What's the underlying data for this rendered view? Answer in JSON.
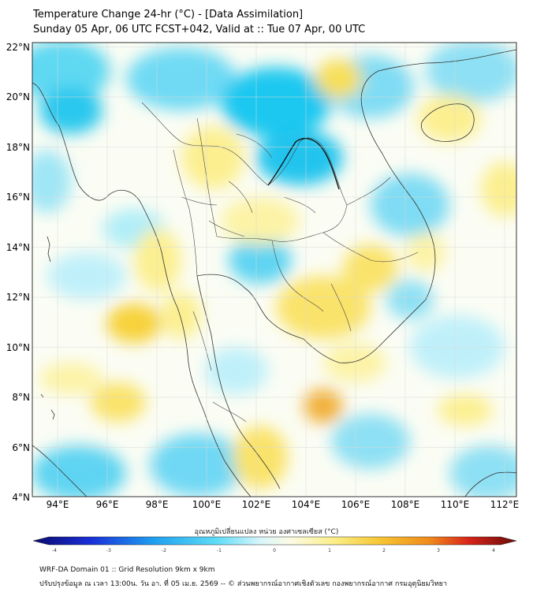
{
  "header": {
    "title_line1": "Temperature Change 24-hr (°C) - [Data Assimilation]",
    "title_line2": "Sunday 05 Apr, 06 UTC FCST+042, Valid at :: Tue 07 Apr, 00 UTC"
  },
  "map": {
    "lat_labels": [
      "22°N",
      "20°N",
      "18°N",
      "16°N",
      "14°N",
      "12°N",
      "10°N",
      "8°N",
      "6°N",
      "4°N"
    ],
    "lon_labels": [
      "94°E",
      "96°E",
      "98°E",
      "100°E",
      "102°E",
      "104°E",
      "106°E",
      "108°E",
      "110°E",
      "112°E"
    ],
    "colors": {
      "cool_strong": "#1ec8f0",
      "cool_light": "#bff0fa",
      "neutral": "#fbfdf4",
      "warm_light": "#fcf6b0",
      "warm_strong": "#f7d23a",
      "warm_orange": "#f2b13a",
      "border_line": "#333333"
    }
  },
  "colorbar": {
    "label": "อุณหภูมิเปลี่ยนแปลง หน่วย องศาเซลเซียส (°C)",
    "tick_labels": [
      "-4",
      "-3",
      "-2",
      "-1",
      "0",
      "1",
      "2",
      "3",
      "4"
    ]
  },
  "footer": {
    "line1": "WRF-DA Domain 01 :: Grid Resolution 9km x 9km",
    "line2": "ปรับปรุงข้อมูล ณ เวลา 13:00น. วัน อา. ที่ 05 เม.ย. 2569 -- © ส่วนพยากรณ์อากาศเชิงตัวเลข กองพยากรณ์อากาศ กรมอุตุนิยมวิทยา"
  }
}
